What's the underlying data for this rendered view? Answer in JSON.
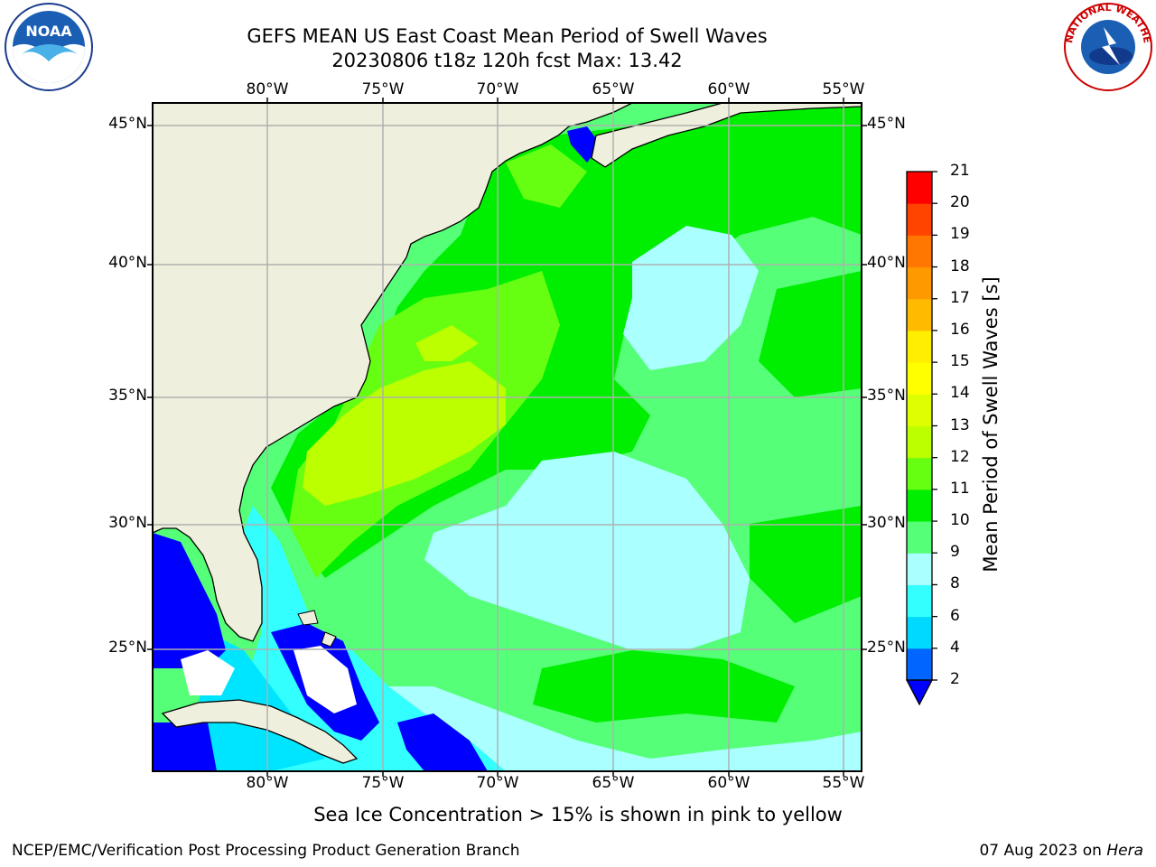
{
  "title": {
    "line1": "GEFS MEAN US East Coast Mean Period of Swell Waves",
    "line2": "20230806 t18z 120h fcst   Max: 13.42"
  },
  "axes": {
    "lon_labels": [
      "80°W",
      "75°W",
      "70°W",
      "65°W",
      "60°W",
      "55°W"
    ],
    "lat_labels": [
      "45°N",
      "40°N",
      "35°N",
      "30°N",
      "25°N"
    ]
  },
  "colorbar": {
    "label": "Mean Period of Swell Waves [s]",
    "ticks": [
      "2",
      "4",
      "6",
      "8",
      "9",
      "10",
      "11",
      "12",
      "13",
      "14",
      "15",
      "16",
      "17",
      "18",
      "19",
      "20",
      "21"
    ],
    "colors": [
      "#0066ff",
      "#00d9ff",
      "#33ffff",
      "#aaffff",
      "#55ff77",
      "#00ee00",
      "#66ff11",
      "#bbff00",
      "#ddff00",
      "#ffff00",
      "#ffee00",
      "#ffbb00",
      "#ff9900",
      "#ff7700",
      "#ff4400",
      "#ff0000"
    ],
    "extend_color": "#0000ff"
  },
  "colors": {
    "land": "#efefdd",
    "ocean_low": "#aaffff",
    "ocean_mid": "#55ff77",
    "ocean_green": "#00ee00",
    "ocean_lime": "#bbff00",
    "shallow_blue": "#0000ff",
    "grid": "#b0b0b0"
  },
  "logos": {
    "noaa": "NOAA",
    "nws": "NATIONAL WEATHER SERVICE"
  },
  "footer": {
    "note": "Sea Ice Concentration > 15% is shown in pink to yellow",
    "credit": "NCEP/EMC/Verification Post Processing Product Generation Branch",
    "date": "07 Aug 2023 on",
    "machine": "Hera"
  }
}
